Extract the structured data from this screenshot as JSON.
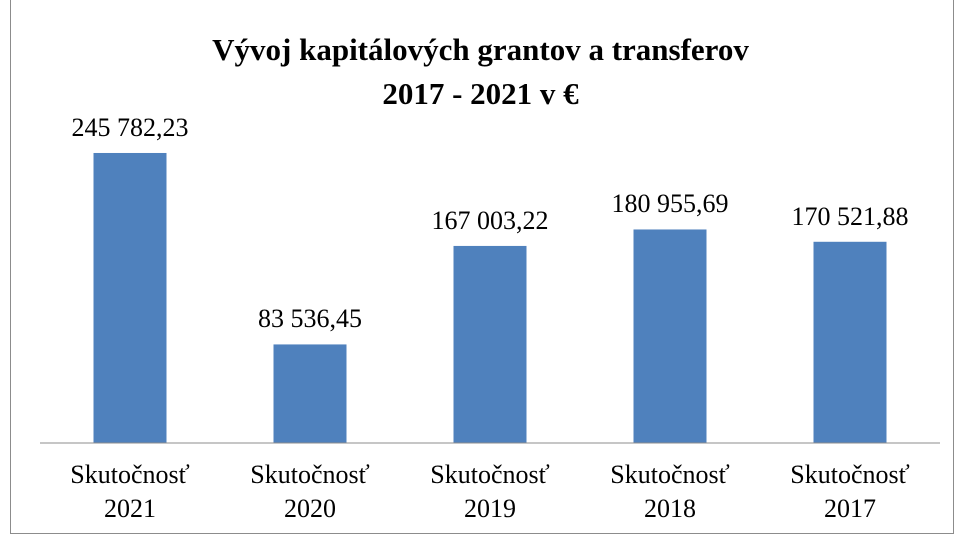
{
  "chart_data": {
    "type": "bar",
    "title": "Vývoj  kapitálových grantov a transferov\n2017 - 2021 v €",
    "categories": [
      "Skutočnosť 2021",
      "Skutočnosť 2020",
      "Skutočnosť 2019",
      "Skutočnosť 2018",
      "Skutočnosť 2017"
    ],
    "values": [
      245782.23,
      83536.45,
      167003.22,
      180955.69,
      170521.88
    ],
    "value_labels": [
      "245 782,23",
      "83 536,45",
      "167 003,22",
      "180 955,69",
      "170 521,88"
    ],
    "color": "#4f81bd",
    "ylim": [
      0,
      300000
    ]
  }
}
